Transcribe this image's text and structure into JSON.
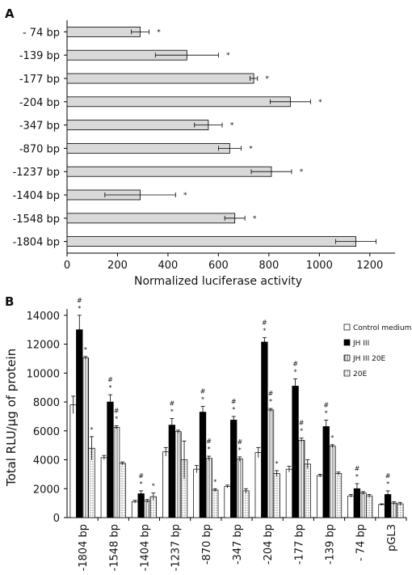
{
  "chart_data": [
    {
      "panel": "A",
      "type": "bar",
      "orientation": "horizontal",
      "categories": [
        "- 74 bp",
        "-139 bp",
        "-177 bp",
        "-204 bp",
        "-347 bp",
        "-870 bp",
        "-1237 bp",
        "-1404 bp",
        "-1548 bp",
        "-1804 bp"
      ],
      "values": [
        290,
        475,
        740,
        885,
        560,
        645,
        810,
        290,
        665,
        1145
      ],
      "errors": [
        35,
        125,
        15,
        80,
        55,
        45,
        80,
        140,
        40,
        80
      ],
      "significance": [
        "*",
        "*",
        "*",
        "*",
        "*",
        "*",
        "*",
        "*",
        "*",
        ""
      ],
      "xlabel": "Normalized luciferase activity",
      "xlim": [
        0,
        1300
      ],
      "xticks": [
        0,
        200,
        400,
        600,
        800,
        1000,
        1200
      ],
      "bar_color": "#d9d9d9",
      "grid": false
    },
    {
      "panel": "B",
      "type": "bar",
      "categories": [
        "-1804 bp",
        "-1548 bp",
        "-1404 bp",
        "-1237 bp",
        "-870 bp",
        "-347 bp",
        "-204 bp",
        "-177 bp",
        "-139 bp",
        "- 74 bp",
        "pGL3"
      ],
      "ylabel": "Total RLU/µg of protein",
      "ylim": [
        0,
        15000
      ],
      "yticks": [
        0,
        2000,
        4000,
        6000,
        8000,
        10000,
        12000,
        14000
      ],
      "legend_position": "top-right",
      "series": [
        {
          "name": "Control medium",
          "pattern": "white",
          "values": [
            7800,
            4150,
            1100,
            4550,
            3350,
            2150,
            4500,
            3350,
            2900,
            1500,
            900
          ],
          "errors": [
            600,
            150,
            100,
            300,
            250,
            100,
            350,
            200,
            100,
            100,
            50
          ],
          "marks": [
            "",
            "",
            "",
            "",
            "",
            "",
            "",
            "",
            "",
            "",
            ""
          ]
        },
        {
          "name": "JH III",
          "pattern": "black",
          "values": [
            13000,
            8000,
            1650,
            6400,
            7300,
            6750,
            12150,
            9100,
            6300,
            2000,
            1600
          ],
          "errors": [
            1000,
            500,
            200,
            450,
            400,
            250,
            300,
            500,
            450,
            350,
            250
          ],
          "marks": [
            "#*",
            "#*",
            "#*",
            "#*",
            "#*",
            "#*",
            "#*",
            "#*",
            "#*",
            "#*",
            "#*"
          ]
        },
        {
          "name": "JH III 20E",
          "pattern": "vertical-lines",
          "values": [
            11050,
            6250,
            1150,
            5950,
            4100,
            4050,
            7450,
            5350,
            4950,
            1700,
            1000
          ],
          "errors": [
            100,
            100,
            100,
            100,
            150,
            150,
            100,
            150,
            100,
            100,
            100
          ],
          "marks": [
            "*",
            "#*",
            "",
            "",
            "#*",
            "#*",
            "#*",
            "#*",
            "*",
            "",
            ""
          ],
          "label_placeholder": true
        },
        {
          "name": "20E",
          "pattern": "dots",
          "values": [
            4800,
            3750,
            1450,
            4000,
            1900,
            1850,
            3050,
            3700,
            3050,
            1500,
            950
          ],
          "errors": [
            800,
            100,
            250,
            1300,
            100,
            150,
            200,
            300,
            100,
            100,
            100
          ],
          "marks": [
            "*",
            "",
            "*",
            "",
            "*",
            "",
            "*",
            "",
            "",
            "",
            ""
          ]
        }
      ],
      "grid": false
    }
  ],
  "panel_a_label": "A",
  "panel_b_label": "B"
}
